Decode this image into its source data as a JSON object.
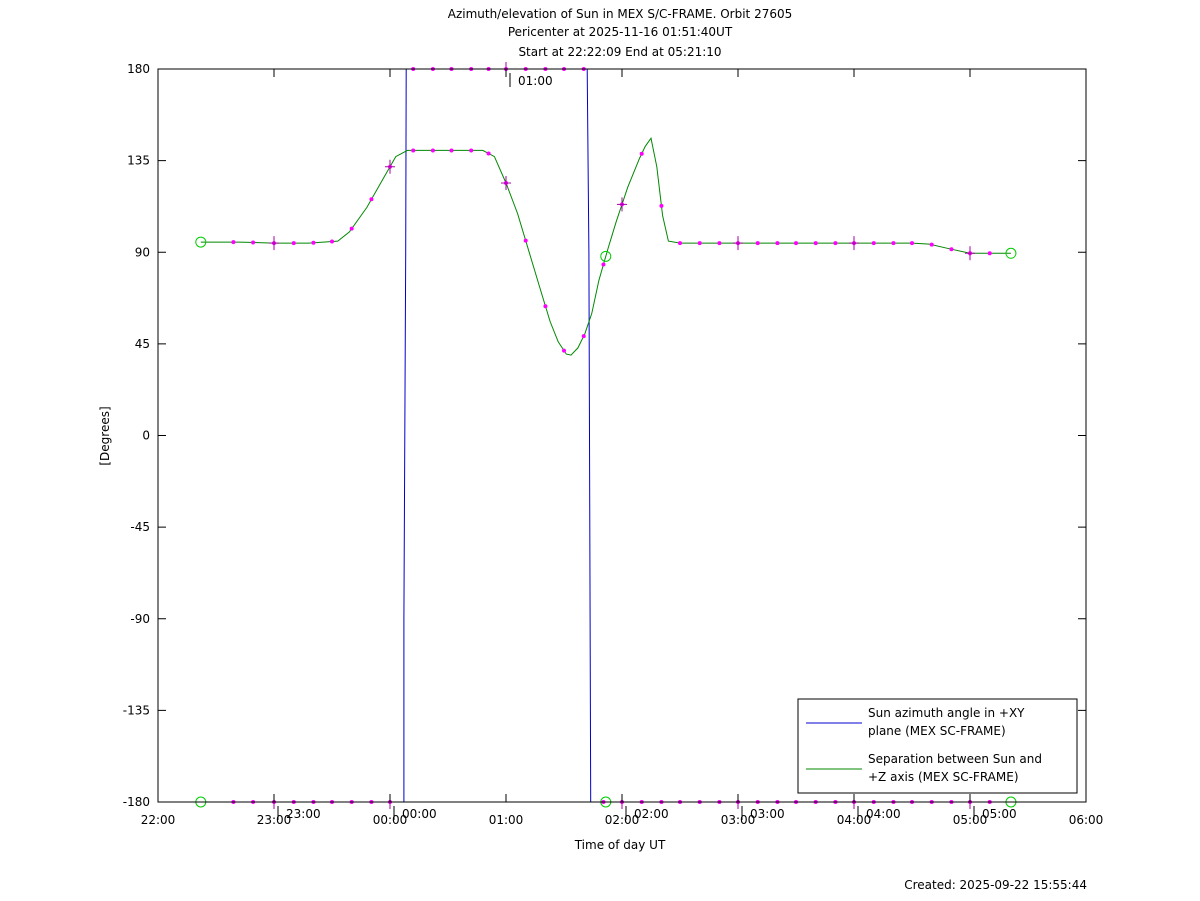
{
  "chart_data": {
    "type": "line",
    "title_lines": [
      "Azimuth/elevation of Sun in MEX S/C-FRAME.  Orbit 27605",
      "Pericenter at 2025-11-16 01:51:40UT",
      "Start at 22:22:09 End at 05:21:10"
    ],
    "xlabel": "Time of day UT",
    "ylabel": "[Degrees]",
    "created": "Created: 2025-09-22 15:55:44",
    "xlim_hours": [
      22,
      30
    ],
    "ylim": [
      -180,
      180
    ],
    "x_ticks": [
      {
        "h": 22,
        "label": "22:00"
      },
      {
        "h": 23,
        "label": "23:00"
      },
      {
        "h": 24,
        "label": "00:00"
      },
      {
        "h": 25,
        "label": "01:00"
      },
      {
        "h": 26,
        "label": "02:00"
      },
      {
        "h": 27,
        "label": "03:00"
      },
      {
        "h": 28,
        "label": "04:00"
      },
      {
        "h": 29,
        "label": "05:00"
      },
      {
        "h": 30,
        "label": "06:00"
      }
    ],
    "y_ticks": [
      180,
      135,
      90,
      45,
      0,
      -45,
      -90,
      -135,
      -180
    ],
    "hour_markers": [
      {
        "h": 23.0,
        "y": -180,
        "label": "23:00"
      },
      {
        "h": 24.0,
        "y": -180,
        "label": "00:00"
      },
      {
        "h": 25.0,
        "y": 180,
        "label": "01:00"
      },
      {
        "h": 26.0,
        "y": -180,
        "label": "02:00"
      },
      {
        "h": 27.0,
        "y": -180,
        "label": "03:00"
      },
      {
        "h": 28.0,
        "y": -180,
        "label": "04:00"
      },
      {
        "h": 29.0,
        "y": -180,
        "label": "05:00"
      }
    ],
    "legend": {
      "placement": "bottom-right",
      "entries": [
        {
          "lines": [
            "Sun azimuth angle in +XY",
            "plane (MEX SC-FRAME)"
          ],
          "color": "#0000cc"
        },
        {
          "lines": [
            "Separation between Sun and",
            "+Z axis (MEX SC-FRAME)"
          ],
          "color": "#008800"
        }
      ]
    },
    "series": [
      {
        "name": "Sun azimuth angle in +XY plane (MEX SC-FRAME)",
        "color": "#0000cc",
        "points": [
          [
            22.369,
            -180
          ],
          [
            22.9,
            -180
          ],
          [
            23.5,
            -180
          ],
          [
            24.0,
            -180
          ],
          [
            24.12,
            -180
          ],
          [
            24.12,
            -90
          ],
          [
            24.135,
            90
          ],
          [
            24.14,
            180
          ],
          [
            24.5,
            180
          ],
          [
            25.0,
            180
          ],
          [
            25.5,
            180
          ],
          [
            25.7,
            180
          ],
          [
            25.715,
            90
          ],
          [
            25.725,
            -90
          ],
          [
            25.73,
            -180
          ],
          [
            26.0,
            -180
          ],
          [
            26.5,
            -180
          ],
          [
            27.0,
            -180
          ],
          [
            28.0,
            -180
          ],
          [
            29.0,
            -180
          ],
          [
            29.353,
            -180
          ]
        ]
      },
      {
        "name": "Separation between Sun and +Z axis (MEX SC-FRAME)",
        "color": "#008800",
        "points": [
          [
            22.369,
            95
          ],
          [
            22.7,
            95
          ],
          [
            23.0,
            94.5
          ],
          [
            23.3,
            94.5
          ],
          [
            23.55,
            95.5
          ],
          [
            23.65,
            100
          ],
          [
            23.8,
            112
          ],
          [
            23.95,
            127
          ],
          [
            24.05,
            137
          ],
          [
            24.15,
            140
          ],
          [
            24.5,
            140
          ],
          [
            24.8,
            140
          ],
          [
            24.9,
            137
          ],
          [
            25.0,
            124
          ],
          [
            25.1,
            109
          ],
          [
            25.2,
            90
          ],
          [
            25.3,
            71
          ],
          [
            25.38,
            56
          ],
          [
            25.45,
            46
          ],
          [
            25.52,
            40
          ],
          [
            25.56,
            39.5
          ],
          [
            25.62,
            43
          ],
          [
            25.68,
            50
          ],
          [
            25.74,
            60
          ],
          [
            25.8,
            76
          ],
          [
            25.88,
            92
          ],
          [
            25.95,
            105
          ],
          [
            26.05,
            122
          ],
          [
            26.15,
            136
          ],
          [
            26.2,
            142
          ],
          [
            26.25,
            146
          ],
          [
            26.3,
            132
          ],
          [
            26.35,
            108
          ],
          [
            26.4,
            95.5
          ],
          [
            26.5,
            94.5
          ],
          [
            27.0,
            94.5
          ],
          [
            27.5,
            94.5
          ],
          [
            28.0,
            94.5
          ],
          [
            28.5,
            94.5
          ],
          [
            28.65,
            94
          ],
          [
            28.8,
            92
          ],
          [
            29.0,
            89.5
          ],
          [
            29.353,
            89.5
          ]
        ]
      }
    ],
    "samples": [
      {
        "series": "azimuth",
        "h": [
          22.65,
          22.82,
          23.0,
          23.17,
          23.34,
          23.5,
          23.67,
          23.84,
          24.0,
          24.2,
          24.37,
          24.53,
          24.7,
          24.85,
          25.0,
          25.17,
          25.34,
          25.5,
          25.67
        ]
      },
      {
        "series": "azimuth_low",
        "h": [
          25.84,
          26.0,
          26.17,
          26.34,
          26.5,
          26.67,
          26.84,
          27.0,
          27.17,
          27.34,
          27.5,
          27.67,
          27.84,
          28.0,
          28.17,
          28.34,
          28.5,
          28.67,
          28.84,
          29.0,
          29.17
        ]
      },
      {
        "series": "separation",
        "h": [
          22.65,
          22.82,
          23.0,
          23.17,
          23.34,
          23.5,
          23.67,
          23.84,
          24.0,
          24.2,
          24.37,
          24.53,
          24.7,
          24.85,
          25.0,
          25.17,
          25.34,
          25.5,
          25.67,
          25.84,
          26.0,
          26.17,
          26.34,
          26.5,
          26.67,
          26.84,
          27.0,
          27.17,
          27.34,
          27.5,
          27.67,
          27.84,
          28.0,
          28.17,
          28.34,
          28.5,
          28.67,
          28.84,
          29.0,
          29.17
        ]
      }
    ],
    "start_end_markers": [
      {
        "h": 22.369,
        "series": "both"
      },
      {
        "h": 25.86,
        "series": "both"
      },
      {
        "h": 29.353,
        "series": "both"
      }
    ],
    "grid": false
  }
}
